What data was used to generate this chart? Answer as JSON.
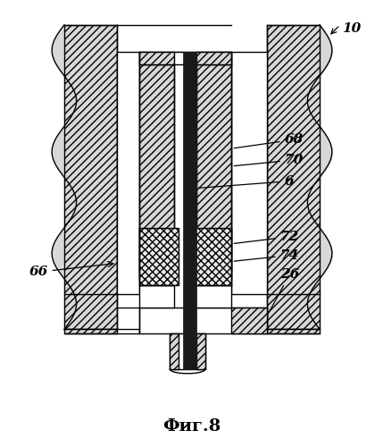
{
  "title": "Фиг.8",
  "label_10": "10",
  "label_66": "66",
  "label_68": "68",
  "label_70": "70",
  "label_6": "6",
  "label_72": "72",
  "label_74": "74",
  "label_26": "26",
  "bg_color": "#ffffff",
  "hatch_gray": "#d8d8d8",
  "lw": 1.0,
  "ann_fs": 11
}
